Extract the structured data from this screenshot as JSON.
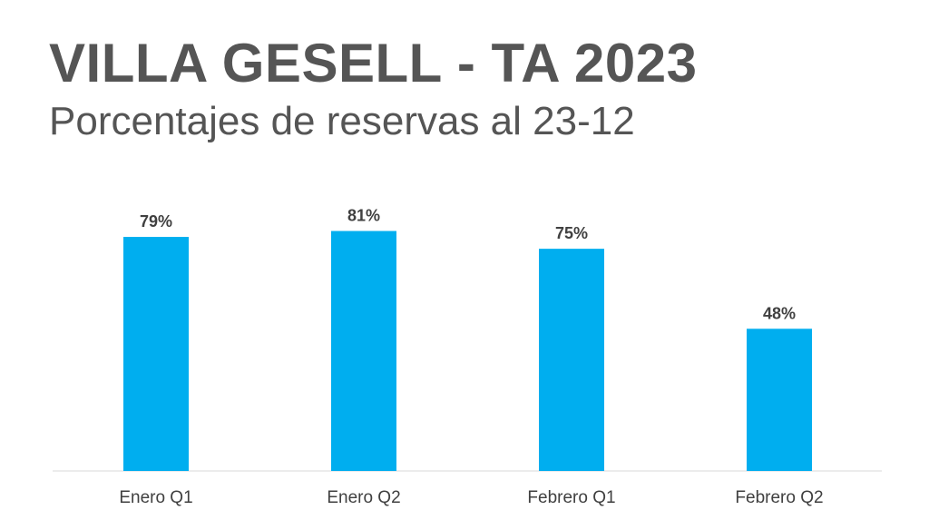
{
  "header": {
    "title": "VILLA GESELL - TA 2023",
    "subtitle": "Porcentajes de reservas al 23-12"
  },
  "colors": {
    "bar": "#00AEEF",
    "text": "#555555",
    "labels": "#404040",
    "axis": "#D9D9D9"
  },
  "chart_data": {
    "type": "bar",
    "title": "VILLA GESELL - TA 2023",
    "subtitle": "Porcentajes de reservas al 23-12",
    "categories": [
      "Enero Q1",
      "Enero Q2",
      "Febrero Q1",
      "Febrero Q2"
    ],
    "values": [
      79,
      81,
      75,
      48
    ],
    "data_labels": [
      "79%",
      "81%",
      "75%",
      "48%"
    ],
    "unit": "%",
    "xlabel": "",
    "ylabel": "",
    "ylim": [
      0,
      100
    ],
    "grid": false,
    "legend": "none"
  }
}
